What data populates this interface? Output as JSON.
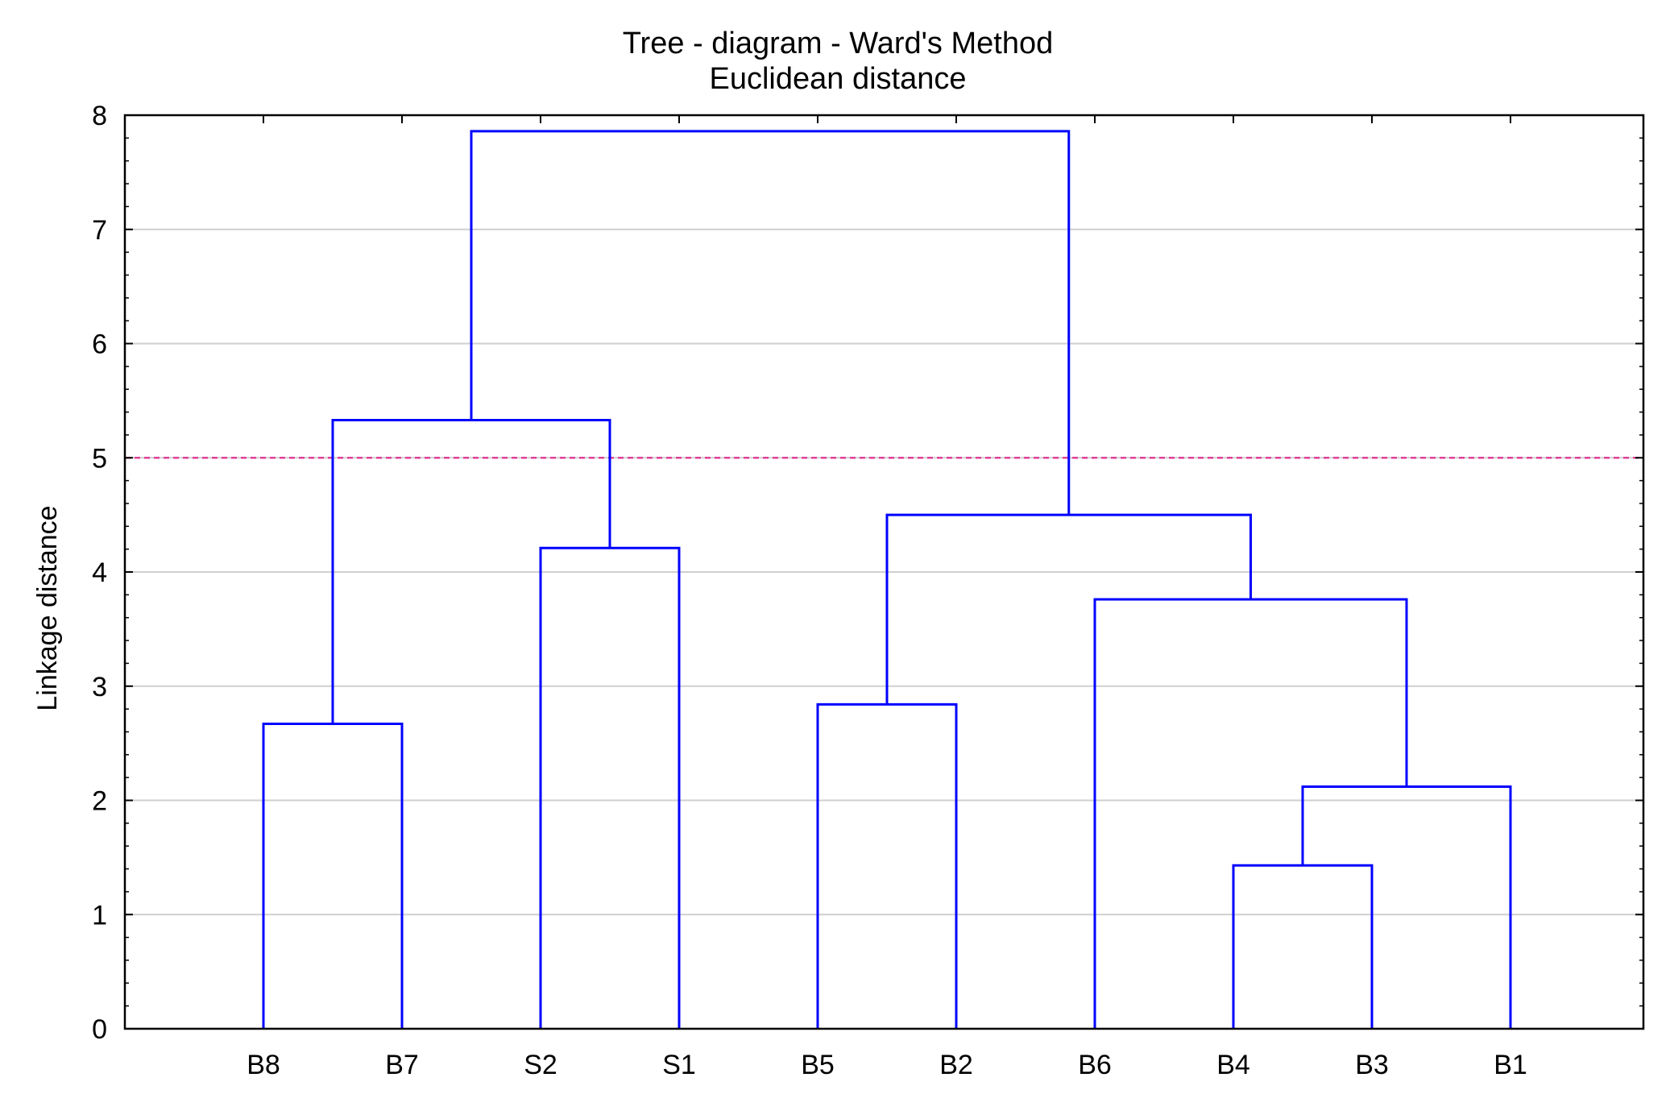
{
  "chart_data": {
    "type": "dendrogram",
    "title": "Tree - diagram - Ward's Method",
    "subtitle": "Euclidean distance",
    "xlabel": "",
    "ylabel": "Linkage distance",
    "ylim": [
      0,
      8
    ],
    "yticks": [
      0,
      1,
      2,
      3,
      4,
      5,
      6,
      7,
      8
    ],
    "grid": true,
    "leaves": [
      "B8",
      "B7",
      "S2",
      "S1",
      "B5",
      "B2",
      "B6",
      "B4",
      "B3",
      "B1"
    ],
    "merges": [
      {
        "left": "B4",
        "right": "B3",
        "height": 1.43
      },
      {
        "left": "[B4,B3]",
        "right": "B1",
        "height": 2.12
      },
      {
        "left": "B8",
        "right": "B7",
        "height": 2.67
      },
      {
        "left": "B5",
        "right": "B2",
        "height": 2.84
      },
      {
        "left": "B6",
        "right": "[B4,B3,B1]",
        "height": 3.76
      },
      {
        "left": "S2",
        "right": "S1",
        "height": 4.21
      },
      {
        "left": "[B5,B2]",
        "right": "[B6,B4,B3,B1]",
        "height": 4.5
      },
      {
        "left": "[B8,B7]",
        "right": "[S2,S1]",
        "height": 5.33
      },
      {
        "left": "[B8,B7,S2,S1]",
        "right": "[B5,B2,B6,B4,B3,B1]",
        "height": 7.86
      }
    ],
    "cutoff_line": 5,
    "colors": {
      "tree": "#0000ff",
      "cutoff": "#e0409a",
      "grid": "#cfcfcf",
      "axis": "#000000"
    }
  }
}
